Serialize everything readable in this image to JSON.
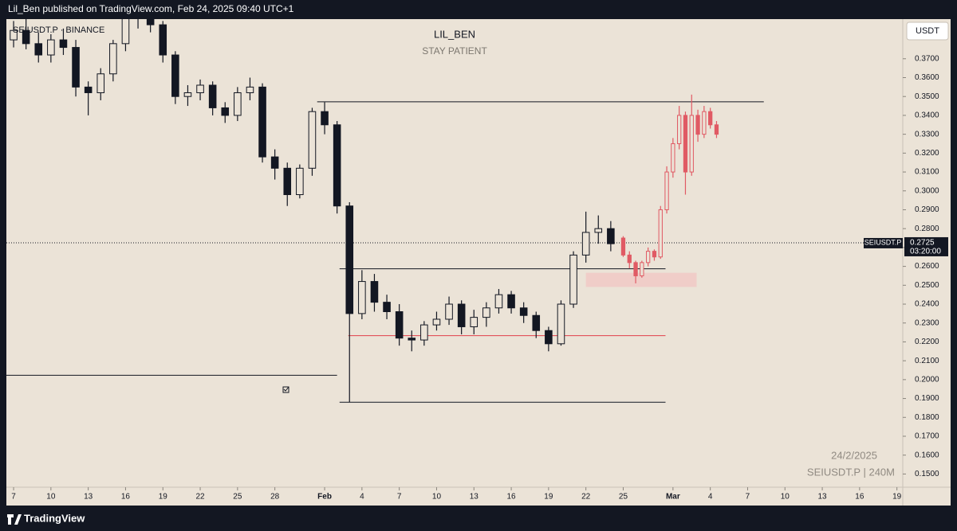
{
  "header": "Lil_Ben published on TradingView.com, Feb 24, 2025 09:40 UTC+1",
  "brand": "TradingView",
  "chart_data": {
    "type": "candlestick",
    "title": "LIL_BEN",
    "subtitle": "STAY PATIENT",
    "symbol": "SEIUSDT.P · BINANCE",
    "watermark_date": "24/2/2025",
    "watermark_symbol": "SEIUSDT.P | 240M",
    "currency": "USDT",
    "last_price": {
      "value": 0.2725,
      "label": "0.2725"
    },
    "last_price_symbol": "SEIUSDT.P",
    "countdown": "03:20:00",
    "xlim": [
      -0.58,
      71.47
    ],
    "ylim": [
      0.143,
      0.391
    ],
    "xticks": [
      {
        "value": 0,
        "label": "7"
      },
      {
        "value": 3,
        "label": "10"
      },
      {
        "value": 6,
        "label": "13"
      },
      {
        "value": 9,
        "label": "16"
      },
      {
        "value": 12,
        "label": "19"
      },
      {
        "value": 15,
        "label": "22"
      },
      {
        "value": 18,
        "label": "25"
      },
      {
        "value": 21,
        "label": "28"
      },
      {
        "value": 25,
        "label": "Feb"
      },
      {
        "value": 28,
        "label": "4"
      },
      {
        "value": 31,
        "label": "7"
      },
      {
        "value": 34,
        "label": "10"
      },
      {
        "value": 37,
        "label": "13"
      },
      {
        "value": 40,
        "label": "16"
      },
      {
        "value": 43,
        "label": "19"
      },
      {
        "value": 46,
        "label": "22"
      },
      {
        "value": 49,
        "label": "25"
      },
      {
        "value": 53,
        "label": "Mar"
      },
      {
        "value": 56,
        "label": "4"
      },
      {
        "value": 59,
        "label": "7"
      },
      {
        "value": 62,
        "label": "10"
      },
      {
        "value": 65,
        "label": "13"
      },
      {
        "value": 68,
        "label": "16"
      },
      {
        "value": 71,
        "label": "19"
      }
    ],
    "yticks": [
      {
        "value": 0.15,
        "label": "0.1500"
      },
      {
        "value": 0.16,
        "label": "0.1600"
      },
      {
        "value": 0.17,
        "label": "0.1700"
      },
      {
        "value": 0.18,
        "label": "0.1800"
      },
      {
        "value": 0.19,
        "label": "0.1900"
      },
      {
        "value": 0.2,
        "label": "0.2000"
      },
      {
        "value": 0.21,
        "label": "0.2100"
      },
      {
        "value": 0.22,
        "label": "0.2200"
      },
      {
        "value": 0.23,
        "label": "0.2300"
      },
      {
        "value": 0.24,
        "label": "0.2400"
      },
      {
        "value": 0.25,
        "label": "0.2500"
      },
      {
        "value": 0.26,
        "label": "0.2600"
      },
      {
        "value": 0.27,
        "label": "0.2700"
      },
      {
        "value": 0.28,
        "label": "0.2800"
      },
      {
        "value": 0.29,
        "label": "0.2900"
      },
      {
        "value": 0.3,
        "label": "0.3000"
      },
      {
        "value": 0.31,
        "label": "0.3100"
      },
      {
        "value": 0.32,
        "label": "0.3200"
      },
      {
        "value": 0.33,
        "label": "0.3300"
      },
      {
        "value": 0.34,
        "label": "0.3400"
      },
      {
        "value": 0.35,
        "label": "0.3500"
      },
      {
        "value": 0.36,
        "label": "0.3600"
      },
      {
        "value": 0.37,
        "label": "0.3700"
      }
    ],
    "series": [
      {
        "color": "#131722",
        "x": [
          0,
          1,
          2,
          3,
          4,
          5,
          6,
          7,
          8,
          9,
          10,
          11,
          12,
          13,
          14,
          15,
          16,
          17,
          18,
          19,
          20,
          21,
          22,
          23,
          24,
          25,
          26,
          27,
          28,
          29,
          30,
          31,
          32,
          33,
          34,
          35,
          36,
          37,
          38,
          39,
          40,
          41,
          42,
          43,
          44,
          45,
          46,
          47,
          48
        ],
        "open": [
          0.38,
          0.385,
          0.378,
          0.372,
          0.38,
          0.376,
          0.355,
          0.352,
          0.362,
          0.378,
          0.392,
          0.392,
          0.388,
          0.372,
          0.35,
          0.352,
          0.356,
          0.344,
          0.34,
          0.352,
          0.355,
          0.318,
          0.312,
          0.298,
          0.312,
          0.342,
          0.335,
          0.292,
          0.235,
          0.252,
          0.241,
          0.236,
          0.222,
          0.221,
          0.229,
          0.232,
          0.24,
          0.228,
          0.233,
          0.238,
          0.245,
          0.238,
          0.234,
          0.226,
          0.219,
          0.24,
          0.266,
          0.278,
          0.28
        ],
        "high": [
          0.39,
          0.392,
          0.384,
          0.383,
          0.386,
          0.38,
          0.358,
          0.365,
          0.38,
          0.396,
          0.398,
          0.396,
          0.39,
          0.374,
          0.356,
          0.359,
          0.358,
          0.347,
          0.355,
          0.36,
          0.357,
          0.322,
          0.315,
          0.314,
          0.344,
          0.347,
          0.337,
          0.294,
          0.258,
          0.256,
          0.245,
          0.24,
          0.226,
          0.231,
          0.236,
          0.244,
          0.242,
          0.237,
          0.241,
          0.248,
          0.247,
          0.241,
          0.236,
          0.228,
          0.242,
          0.268,
          0.289,
          0.287,
          0.284
        ],
        "low": [
          0.376,
          0.375,
          0.368,
          0.368,
          0.372,
          0.35,
          0.34,
          0.348,
          0.358,
          0.374,
          0.386,
          0.384,
          0.368,
          0.346,
          0.345,
          0.348,
          0.34,
          0.336,
          0.337,
          0.348,
          0.315,
          0.306,
          0.292,
          0.296,
          0.308,
          0.33,
          0.288,
          0.188,
          0.232,
          0.236,
          0.232,
          0.218,
          0.215,
          0.218,
          0.226,
          0.229,
          0.224,
          0.224,
          0.228,
          0.235,
          0.235,
          0.23,
          0.222,
          0.215,
          0.218,
          0.238,
          0.262,
          0.272,
          0.268
        ],
        "close": [
          0.385,
          0.378,
          0.372,
          0.38,
          0.376,
          0.355,
          0.352,
          0.362,
          0.378,
          0.392,
          0.392,
          0.388,
          0.372,
          0.35,
          0.352,
          0.356,
          0.344,
          0.34,
          0.352,
          0.355,
          0.318,
          0.312,
          0.298,
          0.312,
          0.342,
          0.335,
          0.292,
          0.235,
          0.252,
          0.241,
          0.236,
          0.222,
          0.221,
          0.229,
          0.232,
          0.24,
          0.228,
          0.233,
          0.238,
          0.245,
          0.238,
          0.234,
          0.226,
          0.219,
          0.24,
          0.266,
          0.278,
          0.28,
          0.272
        ]
      },
      {
        "color": "#e05a64",
        "x": [
          49,
          49.5,
          50,
          50.5,
          51,
          51.5,
          52,
          52.5,
          53,
          53.5,
          54,
          54.5,
          55,
          55.5,
          56,
          56.5
        ],
        "open": [
          0.275,
          0.266,
          0.262,
          0.255,
          0.262,
          0.268,
          0.265,
          0.29,
          0.31,
          0.325,
          0.34,
          0.31,
          0.34,
          0.33,
          0.342,
          0.335
        ],
        "high": [
          0.276,
          0.268,
          0.263,
          0.263,
          0.27,
          0.269,
          0.292,
          0.313,
          0.328,
          0.345,
          0.342,
          0.351,
          0.343,
          0.345,
          0.344,
          0.337
        ],
        "low": [
          0.265,
          0.259,
          0.251,
          0.254,
          0.26,
          0.263,
          0.264,
          0.288,
          0.307,
          0.322,
          0.298,
          0.308,
          0.326,
          0.328,
          0.333,
          0.328
        ],
        "close": [
          0.266,
          0.262,
          0.255,
          0.262,
          0.268,
          0.265,
          0.29,
          0.31,
          0.325,
          0.34,
          0.31,
          0.34,
          0.33,
          0.342,
          0.335,
          0.33
        ]
      }
    ],
    "levels": [
      {
        "value": 0.3472,
        "x": [
          24.4,
          60.3
        ],
        "color": "#131722"
      },
      {
        "value": 0.2587,
        "x": [
          26.2,
          52.4
        ],
        "color": "#131722"
      },
      {
        "value": 0.2233,
        "x": [
          26.9,
          52.4
        ],
        "color": "#e0404a"
      },
      {
        "value": 0.188,
        "x": [
          26.2,
          52.4
        ],
        "color": "#131722"
      },
      {
        "value": 0.2023,
        "x": [
          -0.58,
          26.0
        ],
        "color": "#131722"
      }
    ],
    "zones": [
      {
        "y": [
          0.2491,
          0.2566
        ],
        "x": [
          46.0,
          54.9
        ],
        "color": "#f1c9c6"
      }
    ]
  }
}
